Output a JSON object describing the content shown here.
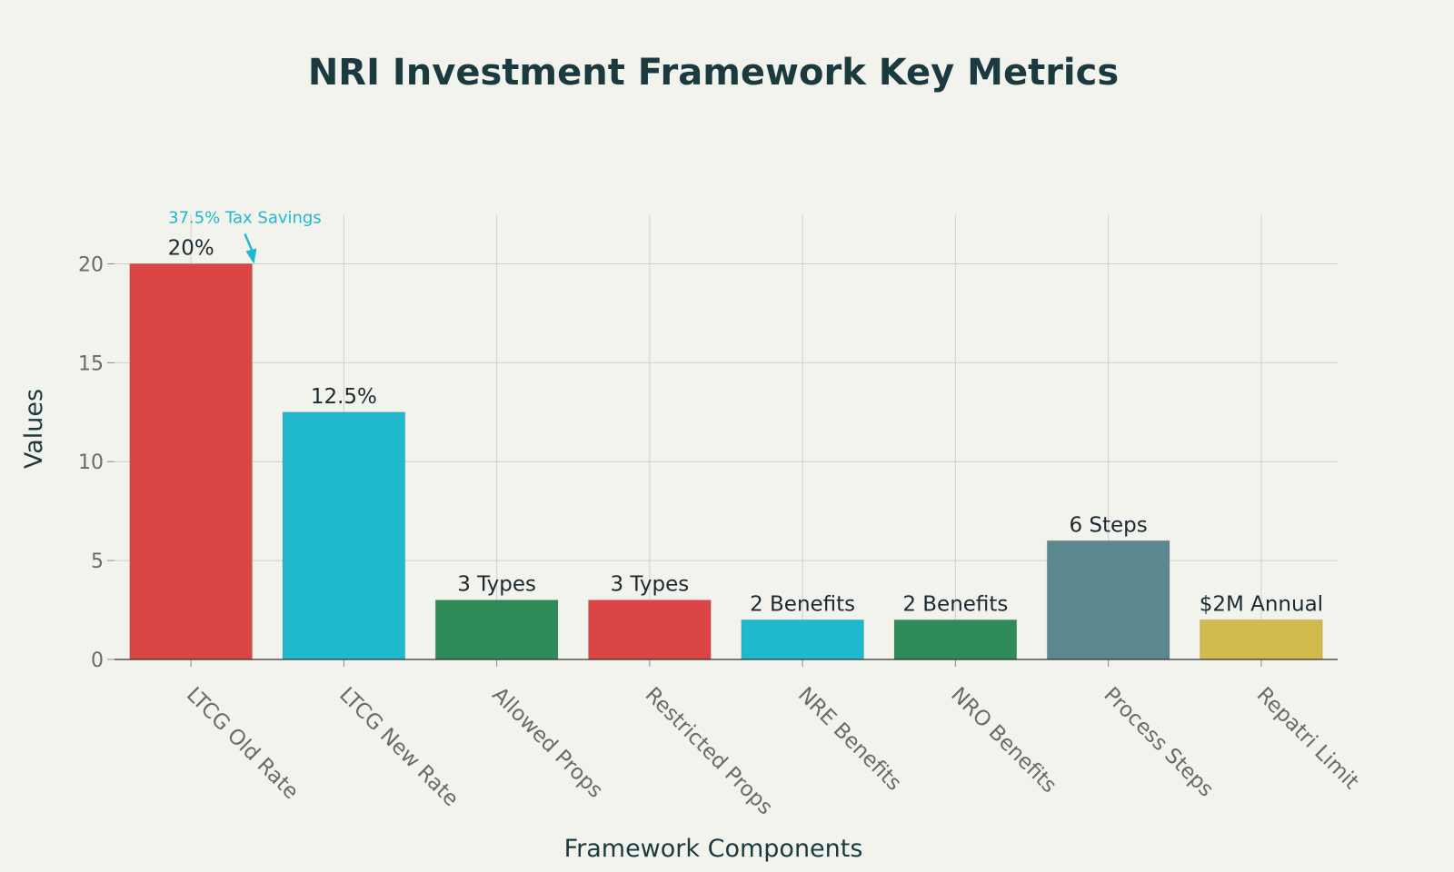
{
  "chart_data": {
    "type": "bar",
    "title": "NRI Investment Framework Key Metrics",
    "xlabel": "Framework Components",
    "ylabel": "Values",
    "ylim": [
      0,
      22.5
    ],
    "yticks": [
      0,
      5,
      10,
      15,
      20
    ],
    "grid": true,
    "categories": [
      "LTCG Old Rate",
      "LTCG New Rate",
      "Allowed Props",
      "Restricted Props",
      "NRE Benefits",
      "NRO Benefits",
      "Process Steps",
      "Repatri Limit"
    ],
    "values": [
      20,
      12.5,
      3,
      3,
      2,
      2,
      6,
      2
    ],
    "data_labels": [
      "20%",
      "12.5%",
      "3 Types",
      "3 Types",
      "2 Benefits",
      "2 Benefits",
      "6 Steps",
      "$2M Annual"
    ],
    "colors": [
      "#db4545",
      "#1fb8cd",
      "#2e8b57",
      "#db4545",
      "#1fb8cd",
      "#2e8b57",
      "#5d878f",
      "#d2ba4c"
    ],
    "annotation": {
      "text": "37.5% Tax Savings",
      "color": "#1fb8cd",
      "x_category": "LTCG Old Rate",
      "y_value": 20
    }
  }
}
